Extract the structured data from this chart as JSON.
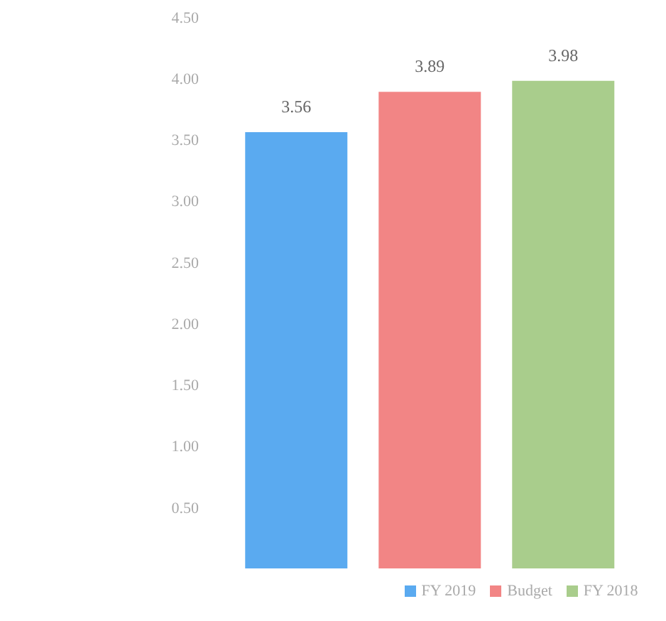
{
  "chart_data": {
    "type": "bar",
    "categories": [
      null
    ],
    "series": [
      {
        "name": "FY 2019",
        "color": "#5aaaf0",
        "values": [
          3.56
        ]
      },
      {
        "name": "Budget",
        "color": "#f28585",
        "values": [
          3.89
        ]
      },
      {
        "name": "FY 2018",
        "color": "#a9cd8c",
        "values": [
          3.98
        ]
      }
    ],
    "ylim": [
      0,
      4.5
    ],
    "yticks": [
      {
        "value": 0.5,
        "label": "0.50"
      },
      {
        "value": 1,
        "label": "1.00"
      },
      {
        "value": 1.5,
        "label": "1.50"
      },
      {
        "value": 2,
        "label": "2.00"
      },
      {
        "value": 2.5,
        "label": "2.50"
      },
      {
        "value": 3,
        "label": "3.00"
      },
      {
        "value": 3.5,
        "label": "3.50"
      },
      {
        "value": 4,
        "label": "4.00"
      },
      {
        "value": 4.5,
        "label": "4.50"
      }
    ],
    "data_labels": true,
    "legend": "bottom"
  }
}
